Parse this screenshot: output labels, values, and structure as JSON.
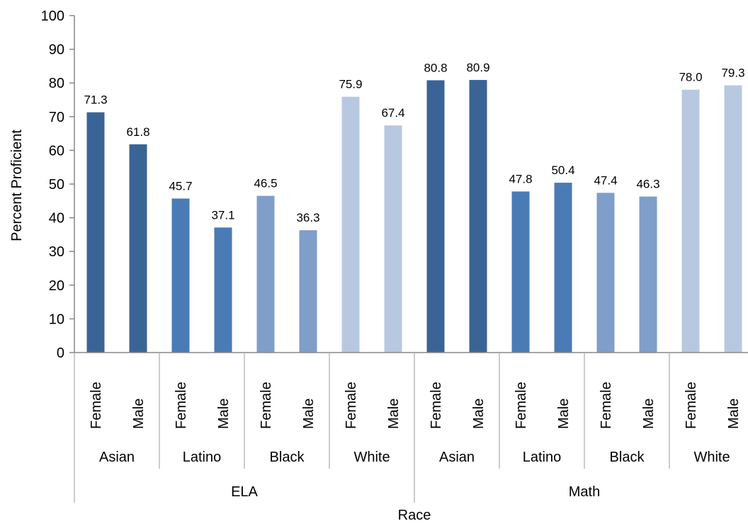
{
  "chart_data": {
    "type": "bar",
    "title": "",
    "xlabel": "Race",
    "ylabel": "Percent Proficient",
    "ylim": [
      0,
      100
    ],
    "yticks": [
      0,
      10,
      20,
      30,
      40,
      50,
      60,
      70,
      80,
      90,
      100
    ],
    "grid": false,
    "legend": "none",
    "colors": {
      "Asian": "#3b6496",
      "Latino": "#4a7bb5",
      "Black": "#7f9ec9",
      "White": "#b8c8e0"
    },
    "subjects": [
      {
        "name": "ELA",
        "races": [
          {
            "name": "Asian",
            "bars": [
              {
                "gender": "Female",
                "value": 71.3,
                "label": "71.3"
              },
              {
                "gender": "Male",
                "value": 61.8,
                "label": "61.8"
              }
            ]
          },
          {
            "name": "Latino",
            "bars": [
              {
                "gender": "Female",
                "value": 45.7,
                "label": "45.7"
              },
              {
                "gender": "Male",
                "value": 37.1,
                "label": "37.1"
              }
            ]
          },
          {
            "name": "Black",
            "bars": [
              {
                "gender": "Female",
                "value": 46.5,
                "label": "46.5"
              },
              {
                "gender": "Male",
                "value": 36.3,
                "label": "36.3"
              }
            ]
          },
          {
            "name": "White",
            "bars": [
              {
                "gender": "Female",
                "value": 75.9,
                "label": "75.9"
              },
              {
                "gender": "Male",
                "value": 67.4,
                "label": "67.4"
              }
            ]
          }
        ]
      },
      {
        "name": "Math",
        "races": [
          {
            "name": "Asian",
            "bars": [
              {
                "gender": "Female",
                "value": 80.8,
                "label": "80.8"
              },
              {
                "gender": "Male",
                "value": 80.9,
                "label": "80.9"
              }
            ]
          },
          {
            "name": "Latino",
            "bars": [
              {
                "gender": "Female",
                "value": 47.8,
                "label": "47.8"
              },
              {
                "gender": "Male",
                "value": 50.4,
                "label": "50.4"
              }
            ]
          },
          {
            "name": "Black",
            "bars": [
              {
                "gender": "Female",
                "value": 47.4,
                "label": "47.4"
              },
              {
                "gender": "Male",
                "value": 46.3,
                "label": "46.3"
              }
            ]
          },
          {
            "name": "White",
            "bars": [
              {
                "gender": "Female",
                "value": 78.0,
                "label": "78.0"
              },
              {
                "gender": "Male",
                "value": 79.3,
                "label": "79.3"
              }
            ]
          }
        ]
      }
    ]
  }
}
